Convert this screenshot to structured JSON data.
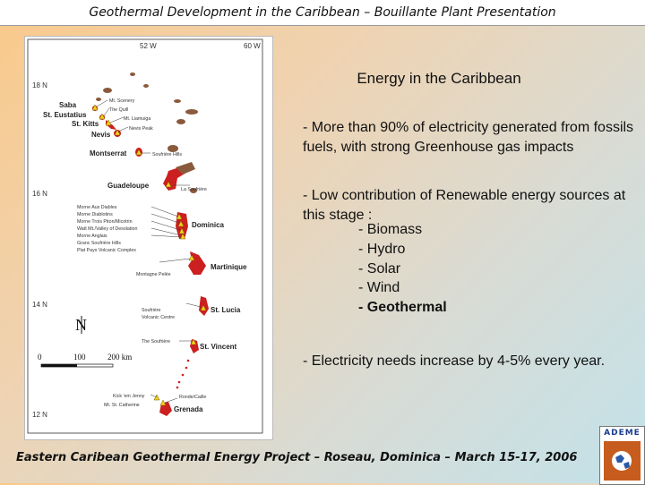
{
  "header": {
    "title": "Geothermal Development in the Caribbean – Bouillante Plant Presentation"
  },
  "map": {
    "coords": {
      "lon_52": "52 W",
      "lon_60": "60 W",
      "lat_18": "18 N",
      "lat_16": "16 N",
      "lat_14": "14 N",
      "lat_12": "12 N"
    },
    "islands": {
      "saba": "Saba",
      "st_eustatius": "St. Eustatius",
      "st_kitts": "St. Kitts",
      "nevis": "Nevis",
      "montserrat": "Montserrat",
      "guadeloupe": "Guadeloupe",
      "dominica": "Dominica",
      "martinique": "Martinique",
      "st_lucia": "St. Lucia",
      "st_vincent": "St. Vincent",
      "grenada": "Grenada"
    },
    "volcanoes": {
      "mt_scenery": "Mt. Scenery",
      "the_quill": "The Quill",
      "mt_liamuiga": "Mt. Liamuiga",
      "nevis_peak": "Nevis Peak",
      "soufriere_hills": "Soufrière Hills",
      "la_soufriere": "La Soufrière",
      "morne_aux_diables": "Morne Aux Diables",
      "morne_diablotins": "Morne Diablotins",
      "morne_trois_pitons": "Morne Trois Piton/Micotrin",
      "watt_mt": "Watt Mt./Valley of Desolation",
      "morne_anglais": "Morne Anglais",
      "grand_soufriere": "Granc Soufrière Hills",
      "plat_pays": "Plat Pays Volcanic Complex",
      "montagne_pelee": "Montagne Pelée",
      "soufriere_vc_1": "Soufrière",
      "soufriere_vc_2": "Volcanic Centre",
      "the_soufriere": "The Soufrière",
      "kick_em_jenny": "Kick 'em Jenny",
      "ronde_caille": "Ronde/Caille",
      "mt_st_catherine": "Mt. St. Catherine"
    },
    "north": "N",
    "scale": {
      "zero": "0",
      "hundred": "100",
      "two_hundred": "200 km"
    }
  },
  "slide": {
    "title": "Energy in the Caribbean",
    "bullet1": "- More than  90% of electricity generated from fossils fuels, with strong Greenhouse gas impacts",
    "bullet2": "- Low contribution of Renewable energy sources at this stage :",
    "sub_items": [
      "- Biomass",
      "- Hydro",
      "- Solar",
      "- Wind",
      "- Geothermal"
    ],
    "bullet3": "- Electricity needs increase by 4-5% every year."
  },
  "footer": {
    "text": "Eastern Caribean Geothermal Energy Project – Roseau, Dominica – March 15-17, 2006"
  },
  "logo": {
    "text": "ADEME"
  }
}
